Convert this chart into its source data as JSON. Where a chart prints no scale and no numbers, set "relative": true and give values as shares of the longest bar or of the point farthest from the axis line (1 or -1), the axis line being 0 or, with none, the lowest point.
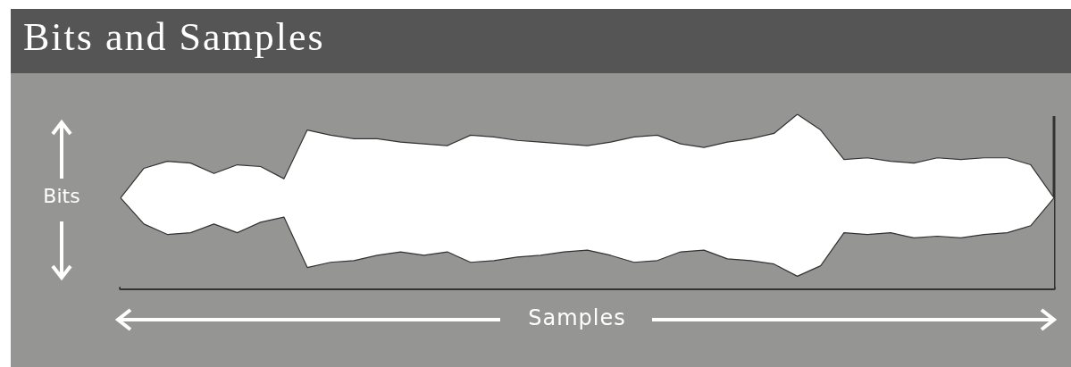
{
  "chart_data": {
    "type": "area",
    "title": "Bits and Samples",
    "xlabel": "Samples",
    "ylabel": "Bits",
    "relative": true,
    "categories": [
      null,
      null,
      null,
      null,
      null,
      null,
      null,
      null,
      null,
      null,
      null,
      null,
      null,
      null,
      null,
      null,
      null,
      null,
      null,
      null,
      null,
      null,
      null,
      null,
      null,
      null,
      null,
      null,
      null,
      null,
      null,
      null,
      null,
      null,
      null,
      null,
      null,
      null,
      null,
      null,
      null
    ],
    "series": [
      {
        "color": "#333333",
        "values": [
          0.52,
          0.69,
          0.73,
          0.72,
          0.66,
          0.71,
          0.7,
          0.63,
          0.91,
          0.88,
          0.86,
          0.86,
          0.84,
          0.83,
          0.82,
          0.88,
          0.87,
          0.85,
          0.84,
          0.83,
          0.82,
          0.84,
          0.87,
          0.88,
          0.83,
          0.81,
          0.84,
          0.86,
          0.89,
          1,
          0.91,
          0.74,
          0.75,
          0.73,
          0.72,
          0.75,
          0.74,
          0.75,
          0.75,
          0.71,
          0.52
        ]
      },
      {
        "color": "#333333",
        "values": [
          0.52,
          0.37,
          0.31,
          0.32,
          0.37,
          0.32,
          0.38,
          0.41,
          0.12,
          0.15,
          0.16,
          0.19,
          0.21,
          0.19,
          0.21,
          0.15,
          0.16,
          0.18,
          0.19,
          0.21,
          0.22,
          0.19,
          0.15,
          0.16,
          0.21,
          0.22,
          0.17,
          0.16,
          0.14,
          0.07,
          0.13,
          0.32,
          0.31,
          0.32,
          0.29,
          0.3,
          0.29,
          0.31,
          0.32,
          0.36,
          0.52
        ]
      }
    ]
  }
}
